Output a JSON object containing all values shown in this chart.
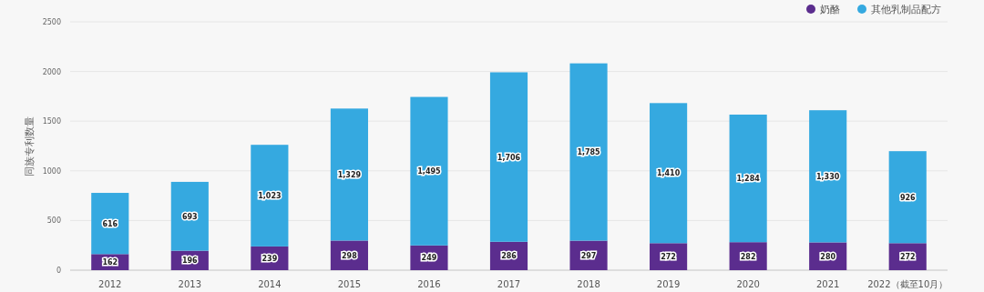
{
  "chart_data": {
    "type": "bar",
    "stacked": true,
    "ylabel": "同族专利数量",
    "categories": [
      "2012",
      "2013",
      "2014",
      "2015",
      "2016",
      "2017",
      "2018",
      "2019",
      "2020",
      "2021",
      "2022（截至10月）"
    ],
    "series": [
      {
        "name": "奶酪",
        "color": "#5b2d8e",
        "values": [
          162,
          196,
          239,
          298,
          249,
          286,
          297,
          272,
          282,
          280,
          272
        ],
        "value_labels": [
          "162",
          "196",
          "239",
          "298",
          "249",
          "286",
          "297",
          "272",
          "282",
          "280",
          "272"
        ]
      },
      {
        "name": "其他乳制品配方",
        "color": "#35a9e0",
        "values": [
          616,
          693,
          1023,
          1329,
          1495,
          1706,
          1785,
          1410,
          1284,
          1330,
          926
        ],
        "value_labels": [
          "616",
          "693",
          "1,023",
          "1,329",
          "1,495",
          "1,706",
          "1,785",
          "1,410",
          "1,284",
          "1,330",
          "926"
        ]
      }
    ],
    "ylim": [
      0,
      2500
    ],
    "yticks": [
      0,
      500,
      1000,
      1500,
      2000,
      2500
    ],
    "grid": "y",
    "legend": "top right"
  }
}
